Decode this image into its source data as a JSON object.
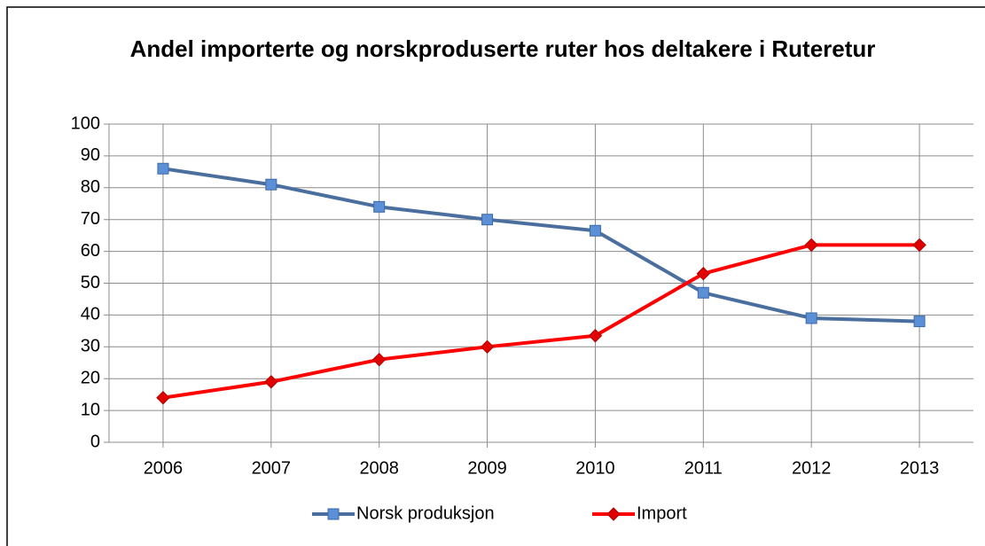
{
  "chart_data": {
    "type": "line",
    "title": "Andel importerte og norskproduserte ruter hos deltakere i Ruteretur",
    "categories": [
      "2006",
      "2007",
      "2008",
      "2009",
      "2010",
      "2011",
      "2012",
      "2013"
    ],
    "series": [
      {
        "name": "Norsk produksjon",
        "color": "#4a6f9e",
        "marker": "square",
        "marker_color": "#5b8fd6",
        "values": [
          86,
          81,
          74,
          70,
          66.5,
          47,
          39,
          38
        ]
      },
      {
        "name": "Import",
        "color": "#ff0000",
        "marker": "diamond",
        "marker_color": "#e00000",
        "values": [
          14,
          19,
          26,
          30,
          33.5,
          53,
          62,
          62
        ]
      }
    ],
    "ylim": [
      0,
      100
    ],
    "yticks": [
      0,
      10,
      20,
      30,
      40,
      50,
      60,
      70,
      80,
      90,
      100
    ],
    "grid": true,
    "legend": "bottom"
  }
}
